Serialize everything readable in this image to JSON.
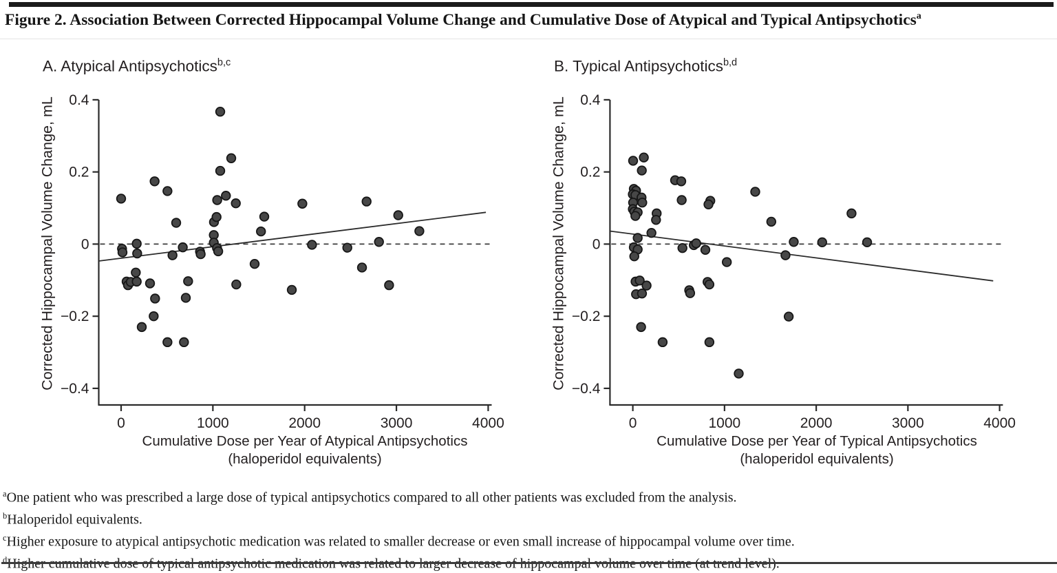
{
  "figure": {
    "title": "Figure 2. Association Between Corrected Hippocampal Volume Change and Cumulative Dose of Atypical and Typical Antipsychotics",
    "title_superscript": "a"
  },
  "footnotes": [
    {
      "marker": "a",
      "text": "One patient who was prescribed a large dose of typical antipsychotics compared to all other patients was excluded from the analysis."
    },
    {
      "marker": "b",
      "text": "Haloperidol equivalents."
    },
    {
      "marker": "c",
      "text": "Higher exposure to atypical antipsychotic medication was related to smaller decrease or even small increase of hippocampal volume over time."
    },
    {
      "marker": "d",
      "text": "Higher cumulative dose of typical antipsychotic medication was related to larger decrease of hippocampal volume over time (at trend level)."
    }
  ],
  "colors": {
    "marker_fill": "#474747",
    "marker_stroke": "#161616",
    "axis": "#2b2b2b",
    "trend": "#2b2b2b",
    "zero_dash": "#3a3a3a"
  },
  "chart_data": [
    {
      "type": "scatter",
      "panel_label": "A. Atypical Antipsychotics",
      "panel_superscript": "b,c",
      "xlabel_line1": "Cumulative Dose per Year of Atypical Antipsychotics",
      "xlabel_line2": "(haloperidol equivalents)",
      "ylabel": "Corrected Hippocampal Volume Change, mL",
      "xlim": [
        -250,
        4040
      ],
      "ylim": [
        -0.45,
        0.4
      ],
      "xticks": [
        0,
        1000,
        2000,
        3000,
        4000
      ],
      "xtick_labels": [
        "0",
        "1000",
        "2000",
        "3000",
        "4000"
      ],
      "yticks": [
        0.4,
        0.2,
        0,
        -0.2,
        -0.4
      ],
      "ytick_labels": [
        "0.4",
        "0.2",
        "0",
        "−0.2",
        "−0.4"
      ],
      "zero_line": true,
      "legend": "none",
      "grid": false,
      "trend_line": {
        "x1": -244,
        "y1": -0.047,
        "x2": 3975,
        "y2": 0.088
      },
      "points": [
        [
          0,
          0.126
        ],
        [
          10,
          -0.013
        ],
        [
          15,
          -0.023
        ],
        [
          60,
          -0.104
        ],
        [
          75,
          -0.114
        ],
        [
          105,
          -0.105
        ],
        [
          160,
          -0.079
        ],
        [
          170,
          0.001
        ],
        [
          175,
          -0.026
        ],
        [
          170,
          -0.104
        ],
        [
          225,
          -0.23
        ],
        [
          315,
          -0.109
        ],
        [
          365,
          0.174
        ],
        [
          370,
          -0.151
        ],
        [
          355,
          -0.2
        ],
        [
          505,
          0.147
        ],
        [
          505,
          -0.272
        ],
        [
          560,
          -0.031
        ],
        [
          600,
          0.059
        ],
        [
          672,
          -0.009
        ],
        [
          685,
          -0.272
        ],
        [
          705,
          -0.149
        ],
        [
          730,
          -0.103
        ],
        [
          860,
          -0.021
        ],
        [
          867,
          -0.028
        ],
        [
          1010,
          0.025
        ],
        [
          1012,
          0.061
        ],
        [
          1040,
          0.075
        ],
        [
          1047,
          0.122
        ],
        [
          1010,
          0.004
        ],
        [
          1045,
          -0.011
        ],
        [
          1058,
          -0.02
        ],
        [
          1080,
          0.203
        ],
        [
          1080,
          0.367
        ],
        [
          1142,
          0.134
        ],
        [
          1200,
          0.238
        ],
        [
          1250,
          0.113
        ],
        [
          1255,
          -0.112
        ],
        [
          1455,
          -0.055
        ],
        [
          1524,
          0.035
        ],
        [
          1560,
          0.076
        ],
        [
          1860,
          -0.127
        ],
        [
          1975,
          0.112
        ],
        [
          2080,
          -0.002
        ],
        [
          2465,
          -0.01
        ],
        [
          2625,
          -0.065
        ],
        [
          2675,
          0.118
        ],
        [
          2810,
          0.006
        ],
        [
          2920,
          -0.114
        ],
        [
          3020,
          0.08
        ],
        [
          3250,
          0.036
        ]
      ]
    },
    {
      "type": "scatter",
      "panel_label": "B. Typical Antipsychotics",
      "panel_superscript": "b,d",
      "xlabel_line1": "Cumulative Dose per Year of Typical Antipsychotics",
      "xlabel_line2": "(haloperidol equivalents)",
      "ylabel": "Corrected Hippocampal Volume Change, mL",
      "xlim": [
        -250,
        4040
      ],
      "ylim": [
        -0.45,
        0.4
      ],
      "xticks": [
        0,
        1000,
        2000,
        3000,
        4000
      ],
      "xtick_labels": [
        "0",
        "1000",
        "2000",
        "3000",
        "4000"
      ],
      "yticks": [
        0.4,
        0.2,
        0,
        -0.2,
        -0.4
      ],
      "ytick_labels": [
        "0.4",
        "0.2",
        "0",
        "−0.2",
        "−0.4"
      ],
      "zero_line": true,
      "legend": "none",
      "grid": false,
      "trend_line": {
        "x1": -250,
        "y1": 0.036,
        "x2": 3930,
        "y2": -0.102
      },
      "points": [
        [
          3,
          0.231
        ],
        [
          120,
          0.24
        ],
        [
          98,
          0.204
        ],
        [
          11,
          0.153
        ],
        [
          35,
          0.148
        ],
        [
          0,
          0.138
        ],
        [
          28,
          0.136
        ],
        [
          95,
          0.129
        ],
        [
          103,
          0.115
        ],
        [
          3,
          0.115
        ],
        [
          533,
          0.122
        ],
        [
          0,
          0.097
        ],
        [
          16,
          0.09
        ],
        [
          53,
          0.088
        ],
        [
          28,
          0.078
        ],
        [
          260,
          0.085
        ],
        [
          253,
          0.067
        ],
        [
          203,
          0.031
        ],
        [
          53,
          0.017
        ],
        [
          11,
          -0.009
        ],
        [
          53,
          -0.015
        ],
        [
          16,
          -0.034
        ],
        [
          461,
          0.177
        ],
        [
          528,
          0.174
        ],
        [
          665,
          -0.003
        ],
        [
          691,
          0.002
        ],
        [
          541,
          -0.011
        ],
        [
          791,
          -0.016
        ],
        [
          845,
          0.12
        ],
        [
          825,
          0.11
        ],
        [
          1335,
          0.145
        ],
        [
          1510,
          0.062
        ],
        [
          2385,
          0.085
        ],
        [
          1665,
          -0.031
        ],
        [
          1755,
          0.006
        ],
        [
          2065,
          0.005
        ],
        [
          2555,
          0.005
        ],
        [
          1025,
          -0.05
        ],
        [
          30,
          -0.104
        ],
        [
          75,
          -0.101
        ],
        [
          150,
          -0.115
        ],
        [
          35,
          -0.139
        ],
        [
          100,
          -0.137
        ],
        [
          615,
          -0.128
        ],
        [
          625,
          -0.136
        ],
        [
          815,
          -0.105
        ],
        [
          835,
          -0.112
        ],
        [
          90,
          -0.23
        ],
        [
          325,
          -0.272
        ],
        [
          835,
          -0.272
        ],
        [
          1155,
          -0.359
        ],
        [
          1700,
          -0.201
        ]
      ]
    }
  ]
}
